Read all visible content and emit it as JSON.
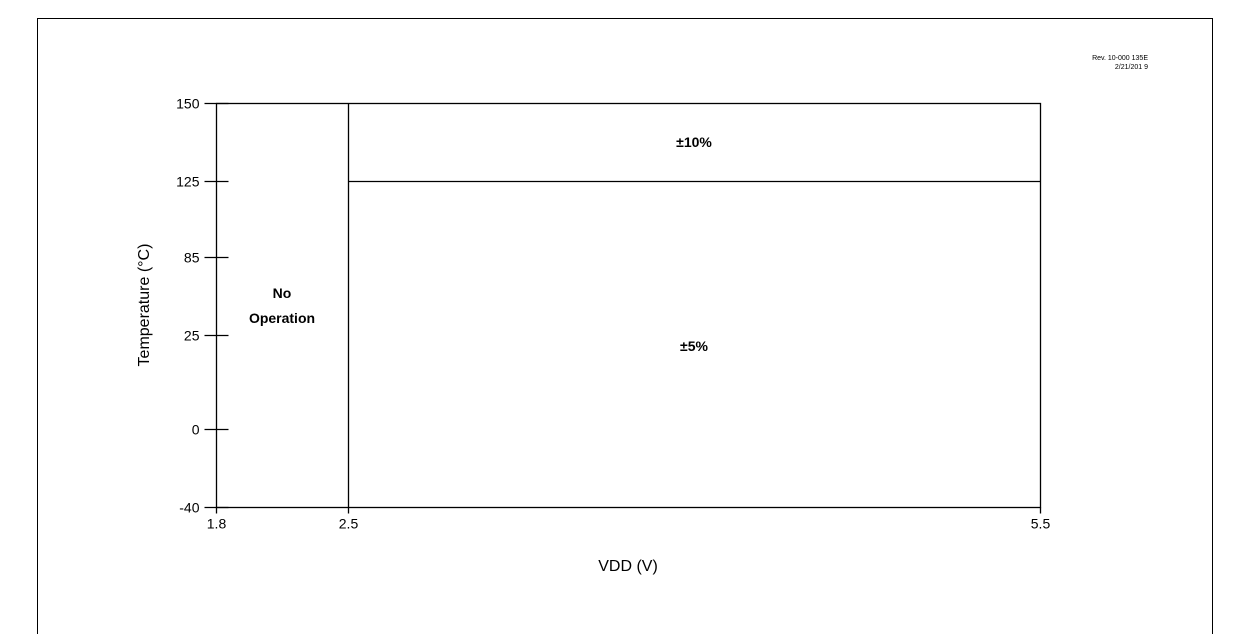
{
  "revision": {
    "line1": "Rev. 10-000 135E",
    "line2": "2/21/201 9"
  },
  "chart_data": {
    "type": "region",
    "xlabel": "VDD (V)",
    "ylabel": "Temperature (°C)",
    "x_ticks": [
      {
        "value": 1.8,
        "label": "1.8"
      },
      {
        "value": 2.5,
        "label": "2.5"
      },
      {
        "value": 5.5,
        "label": "5.5"
      }
    ],
    "y_ticks": [
      {
        "label": "150"
      },
      {
        "label": "125"
      },
      {
        "label": "85"
      },
      {
        "label": "25"
      },
      {
        "label": "0"
      },
      {
        "label": "-40"
      }
    ],
    "regions": [
      {
        "x_range": [
          1.8,
          2.5
        ],
        "y_range": [
          "-40",
          "150"
        ],
        "label": [
          "No",
          "Operation"
        ]
      },
      {
        "x_range": [
          2.5,
          5.5
        ],
        "y_range": [
          "125",
          "150"
        ],
        "label": [
          "±10%"
        ]
      },
      {
        "x_range": [
          2.5,
          5.5
        ],
        "y_range": [
          "-40",
          "125"
        ],
        "label": [
          "±5%"
        ]
      }
    ],
    "grid": false,
    "legend": "none"
  }
}
